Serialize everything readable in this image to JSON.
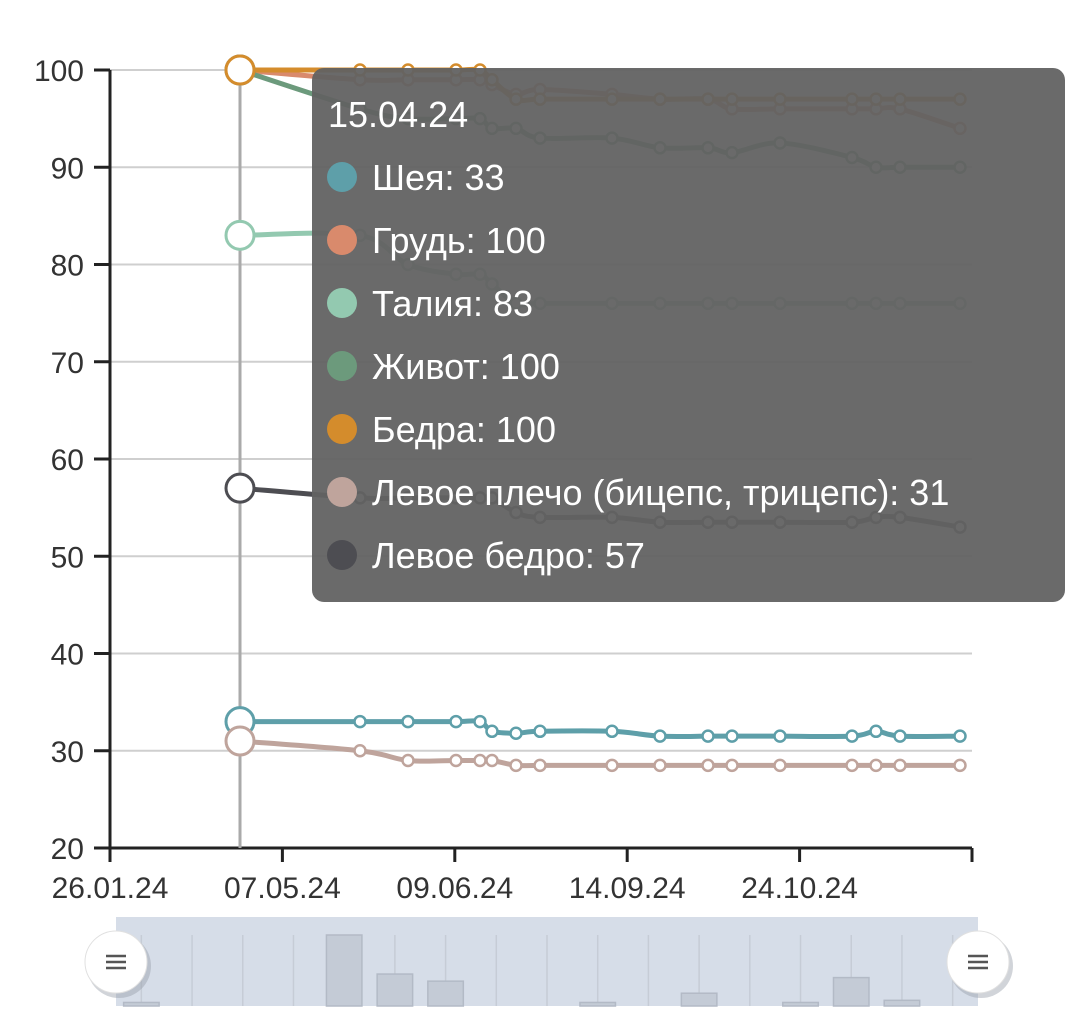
{
  "chart_data": {
    "type": "line",
    "ylim": [
      20,
      100
    ],
    "y_ticks": [
      20,
      30,
      40,
      50,
      60,
      70,
      80,
      90,
      100
    ],
    "x_tick_labels": [
      "26.01.24",
      "07.05.24",
      "09.06.24",
      "14.09.24",
      "24.10.24"
    ],
    "x_points": [
      0,
      5,
      7,
      9,
      10,
      10.5,
      11.5,
      12.5,
      15.5,
      17.5,
      19.5,
      20.5,
      22.5,
      25.5,
      26.5,
      27.5,
      30
    ],
    "series": [
      {
        "name": "Шея",
        "color": "#5e9fa9",
        "values": [
          33,
          33,
          33,
          33,
          33,
          32,
          31.8,
          32,
          32,
          31.5,
          31.5,
          31.5,
          31.5,
          31.5,
          32,
          31.5,
          31.5
        ]
      },
      {
        "name": "Грудь",
        "color": "#d98a6c",
        "values": [
          100,
          99,
          99,
          99,
          99,
          98.5,
          97.5,
          98,
          97.5,
          97,
          97,
          96,
          96,
          96,
          96,
          96,
          94
        ]
      },
      {
        "name": "Талия",
        "color": "#93c9b0",
        "values": [
          83,
          83,
          80,
          79,
          79,
          78,
          76,
          76,
          76,
          76,
          76,
          76,
          76,
          76,
          76,
          76,
          76
        ]
      },
      {
        "name": "Живот",
        "color": "#6c9a7c",
        "values": [
          100,
          96,
          95,
          95,
          95,
          94,
          94,
          93,
          93,
          92,
          92,
          91.5,
          92.5,
          91,
          90,
          90,
          90
        ]
      },
      {
        "name": "Бедра",
        "color": "#d48c2c",
        "values": [
          100,
          100,
          100,
          100,
          100,
          99,
          97,
          97,
          97,
          97,
          97,
          97,
          97,
          97,
          97,
          97,
          97
        ]
      },
      {
        "name": "Левое плечо (бицепс, трицепс)",
        "color": "#bfa49c",
        "values": [
          31,
          30,
          29,
          29,
          29,
          29,
          28.5,
          28.5,
          28.5,
          28.5,
          28.5,
          28.5,
          28.5,
          28.5,
          28.5,
          28.5,
          28.5
        ]
      },
      {
        "name": "Левое бедро",
        "color": "#4d4d52",
        "values": [
          57,
          56,
          56,
          56,
          56,
          56,
          54.5,
          54,
          54,
          53.5,
          53.5,
          53.5,
          53.5,
          53.5,
          54,
          54,
          53
        ]
      }
    ],
    "tooltip": {
      "title": "15.04.24",
      "entries": [
        {
          "label": "Шея: 33",
          "color": "#5e9fa9"
        },
        {
          "label": "Грудь: 100",
          "color": "#d98a6c"
        },
        {
          "label": "Талия: 83",
          "color": "#93c9b0"
        },
        {
          "label": "Живот: 100",
          "color": "#6c9a7c"
        },
        {
          "label": "Бедра: 100",
          "color": "#d48c2c"
        },
        {
          "label": "Левое плечо (бицепс, трицепс): 31",
          "color": "#bfa49c"
        },
        {
          "label": "Левое бедро: 57",
          "color": "#4d4d52"
        }
      ]
    },
    "grid": true,
    "colors": {
      "axis": "#222222",
      "grid": "#cfcfcf",
      "cursor": "#aaaaaa",
      "tooltip_bg": "#626262",
      "slider_bg": "#d6dde8",
      "slider_shape": "#c4cbd6"
    },
    "slider_bars": [
      0.05,
      0,
      0,
      0,
      1.0,
      0.45,
      0.35,
      0,
      0,
      0.05,
      0,
      0.18,
      0,
      0.05,
      0.4,
      0.08,
      0
    ],
    "slider_handles": [
      "handle-left-icon",
      "handle-right-icon"
    ]
  }
}
